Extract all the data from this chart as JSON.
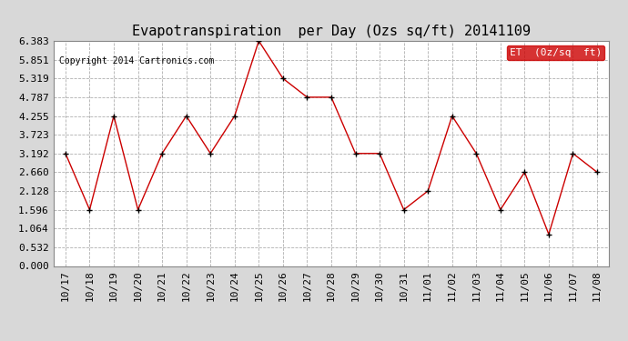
{
  "title": "Evapotranspiration  per Day (Ozs sq/ft) 20141109",
  "copyright": "Copyright 2014 Cartronics.com",
  "legend_label": "ET  (0z/sq  ft)",
  "legend_bg": "#cc0000",
  "legend_fg": "#ffffff",
  "x_labels": [
    "10/17",
    "10/18",
    "10/19",
    "10/20",
    "10/21",
    "10/22",
    "10/23",
    "10/24",
    "10/25",
    "10/26",
    "10/27",
    "10/28",
    "10/29",
    "10/30",
    "10/31",
    "11/01",
    "11/02",
    "11/03",
    "11/04",
    "11/05",
    "11/06",
    "11/07",
    "11/08"
  ],
  "y_values": [
    3.192,
    1.596,
    4.255,
    1.596,
    3.192,
    4.255,
    3.192,
    4.255,
    6.383,
    5.319,
    4.787,
    4.787,
    3.192,
    3.192,
    1.596,
    2.128,
    4.255,
    3.192,
    1.596,
    2.66,
    0.9,
    3.192,
    2.66
  ],
  "y_ticks": [
    0.0,
    0.532,
    1.064,
    1.596,
    2.128,
    2.66,
    3.192,
    3.723,
    4.255,
    4.787,
    5.319,
    5.851,
    6.383
  ],
  "ylim": [
    0.0,
    6.383
  ],
  "line_color": "#cc0000",
  "marker_color": "#000000",
  "bg_color": "#d8d8d8",
  "plot_bg": "#ffffff",
  "grid_color": "#b0b0b0",
  "title_fontsize": 11,
  "copyright_fontsize": 7,
  "tick_fontsize": 8
}
